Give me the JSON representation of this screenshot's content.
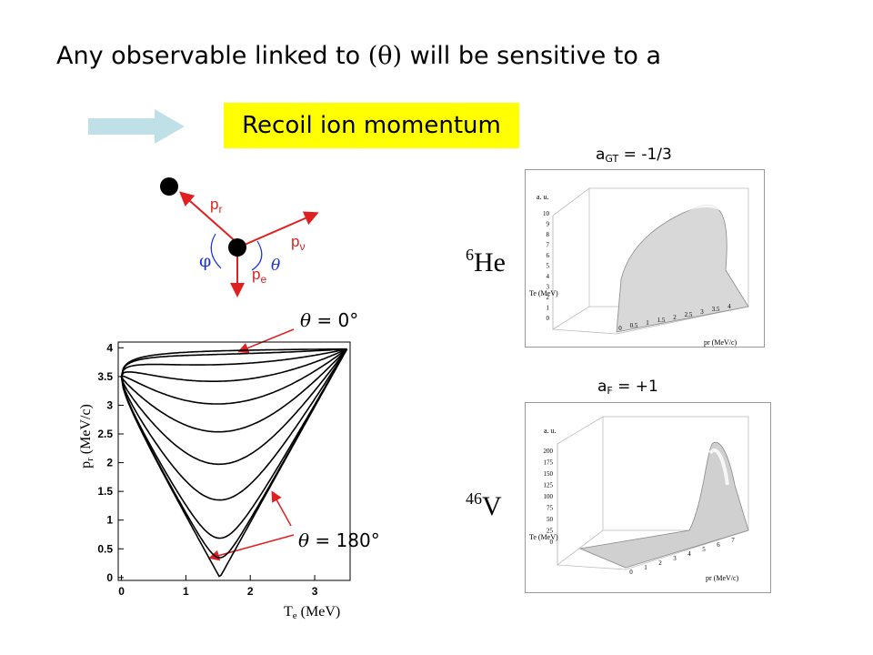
{
  "headline": {
    "part1": "Any observable linked to ",
    "theta": "(θ)",
    "part2": " will be sensitive to a"
  },
  "recoil_box": {
    "label": "Recoil ion momentum"
  },
  "diagram": {
    "p_r": "p",
    "p_r_sub": "r",
    "p_nu": "p",
    "p_nu_sub": "ν",
    "p_e": "p",
    "p_e_sub": "e",
    "phi": "φ",
    "theta": "θ"
  },
  "nuclei": {
    "he": {
      "mass": "6",
      "symbol": "He"
    },
    "v": {
      "mass": "46",
      "symbol": "V"
    }
  },
  "coefficients": {
    "agt": {
      "prefix": "a",
      "sub": "GT",
      "value": " = -1/3"
    },
    "af": {
      "prefix": "a",
      "sub": "F",
      "value": " = +1"
    }
  },
  "annotations": {
    "theta0": {
      "sym": "θ",
      "text": " = 0°"
    },
    "theta180": {
      "sym": "θ",
      "text": " = 180°"
    }
  },
  "main_plot": {
    "xlabel_main": "T",
    "xlabel_sub": "e",
    "xlabel_unit": " (MeV)",
    "ylabel_main": "p",
    "ylabel_sub": "r",
    "ylabel_unit": " (MeV/c)",
    "xticks": [
      "0",
      "1",
      "2",
      "3"
    ],
    "yticks": [
      "0",
      "0.5",
      "1",
      "1.5",
      "2",
      "2.5",
      "3",
      "3.5",
      "4"
    ]
  },
  "plot3d_he": {
    "zlabel": "a. u.",
    "zticks": [
      "0",
      "1",
      "2",
      "3",
      "4",
      "5",
      "6",
      "7",
      "8",
      "9",
      "10"
    ],
    "te_label": "Te (MeV)",
    "te_ticks": [
      "0",
      "1",
      "2",
      "3"
    ],
    "pr_label": "pr (MeV/c)",
    "pr_ticks": [
      "0",
      "0.5",
      "1",
      "1.5",
      "2",
      "2.5",
      "3",
      "3.5",
      "4"
    ]
  },
  "plot3d_v": {
    "zlabel": "a. u.",
    "zticks": [
      "0",
      "25",
      "50",
      "75",
      "100",
      "125",
      "150",
      "175",
      "200"
    ],
    "te_label": "Te (MeV)",
    "te_ticks": [
      "0",
      "2",
      "4",
      "5"
    ],
    "pr_label": "pr (MeV/c)",
    "pr_ticks": [
      "0",
      "1",
      "2",
      "3",
      "4",
      "5",
      "6",
      "7"
    ]
  },
  "colors": {
    "red": "#e02020",
    "blue": "#1a2fe0",
    "arrow_fill": "#c0e0e8",
    "highlight": "#ffff00"
  }
}
